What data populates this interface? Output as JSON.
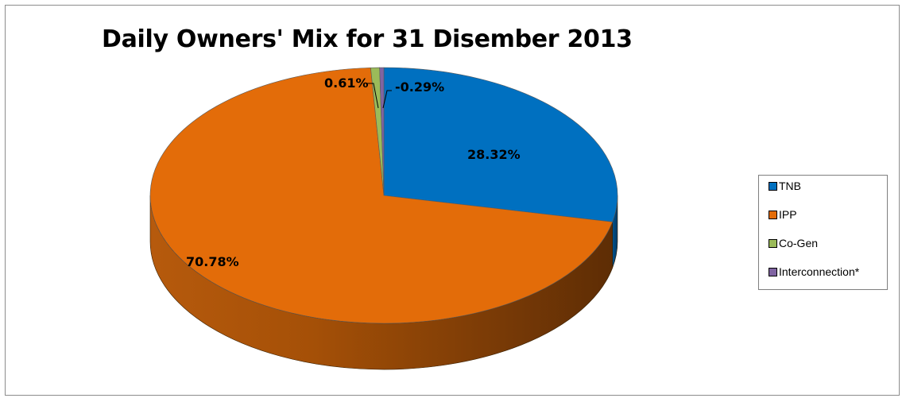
{
  "chart_data": {
    "type": "pie",
    "title": "Daily Owners' Mix for 31 Disember 2013",
    "legend_position": "right",
    "slices": [
      {
        "name": "TNB",
        "value": 28.32,
        "label": "28.32%",
        "color": "#0070C0"
      },
      {
        "name": "IPP",
        "value": 70.78,
        "label": "70.78%",
        "color": "#E36C09"
      },
      {
        "name": "Co-Gen",
        "value": 0.61,
        "label": "0.61%",
        "color": "#9BBB59"
      },
      {
        "name": "Interconnection*",
        "value": -0.29,
        "label": "-0.29%",
        "color": "#8064A2"
      }
    ]
  }
}
